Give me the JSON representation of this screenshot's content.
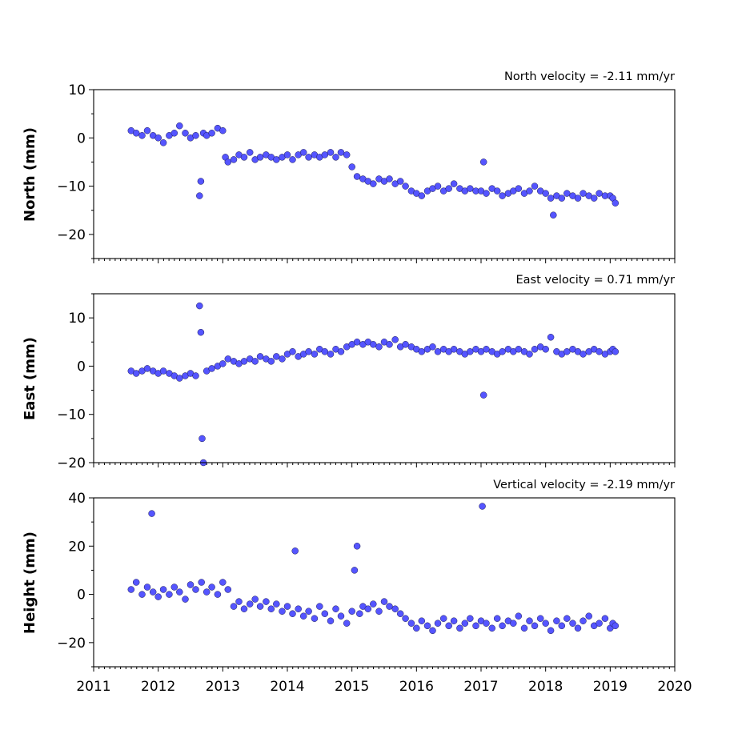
{
  "chart_data": [
    {
      "type": "scatter",
      "annotation": "North velocity = -2.11 mm/yr",
      "ylabel": "North (mm)",
      "xlim": [
        2011,
        2020
      ],
      "ylim": [
        -25,
        10
      ],
      "yticks": [
        10,
        0,
        -10,
        -20
      ],
      "ytick_labels": [
        "10",
        "0",
        "−10",
        "−20"
      ],
      "xticks": [
        2011,
        2012,
        2013,
        2014,
        2015,
        2016,
        2017,
        2018,
        2019,
        2020
      ],
      "xtick_labels": [],
      "color": "#5555ff",
      "x": [
        2011.58,
        2011.66,
        2011.75,
        2011.83,
        2011.92,
        2012.0,
        2012.08,
        2012.17,
        2012.25,
        2012.33,
        2012.42,
        2012.5,
        2012.58,
        2012.64,
        2012.66,
        2012.7,
        2012.75,
        2012.83,
        2012.92,
        2013.0,
        2013.04,
        2013.08,
        2013.17,
        2013.25,
        2013.33,
        2013.42,
        2013.5,
        2013.58,
        2013.67,
        2013.75,
        2013.83,
        2013.92,
        2014.0,
        2014.08,
        2014.17,
        2014.25,
        2014.33,
        2014.42,
        2014.5,
        2014.58,
        2014.67,
        2014.75,
        2014.83,
        2014.92,
        2015.0,
        2015.08,
        2015.17,
        2015.25,
        2015.33,
        2015.42,
        2015.5,
        2015.58,
        2015.67,
        2015.75,
        2015.83,
        2015.92,
        2016.0,
        2016.08,
        2016.17,
        2016.25,
        2016.33,
        2016.42,
        2016.5,
        2016.58,
        2016.67,
        2016.75,
        2016.83,
        2016.92,
        2017.0,
        2017.04,
        2017.08,
        2017.17,
        2017.25,
        2017.33,
        2017.42,
        2017.5,
        2017.58,
        2017.67,
        2017.75,
        2017.83,
        2017.92,
        2018.0,
        2018.08,
        2018.12,
        2018.17,
        2018.25,
        2018.33,
        2018.42,
        2018.5,
        2018.58,
        2018.67,
        2018.75,
        2018.83,
        2018.92,
        2019.0,
        2019.04,
        2019.08
      ],
      "y": [
        1.5,
        1.0,
        0.5,
        1.5,
        0.5,
        0.0,
        -1.0,
        0.5,
        1.0,
        2.5,
        1.0,
        0.0,
        0.5,
        -12.0,
        -9.0,
        1.0,
        0.5,
        1.0,
        2.0,
        1.5,
        -4.0,
        -5.0,
        -4.5,
        -3.5,
        -4.0,
        -3.0,
        -4.5,
        -4.0,
        -3.5,
        -4.0,
        -4.5,
        -4.0,
        -3.5,
        -4.5,
        -3.5,
        -3.0,
        -4.0,
        -3.5,
        -4.0,
        -3.5,
        -3.0,
        -4.0,
        -3.0,
        -3.5,
        -6.0,
        -8.0,
        -8.5,
        -9.0,
        -9.5,
        -8.5,
        -9.0,
        -8.5,
        -9.5,
        -9.0,
        -10.0,
        -11.0,
        -11.5,
        -12.0,
        -11.0,
        -10.5,
        -10.0,
        -11.0,
        -10.5,
        -9.5,
        -10.5,
        -11.0,
        -10.5,
        -11.0,
        -11.0,
        -5.0,
        -11.5,
        -10.5,
        -11.0,
        -12.0,
        -11.5,
        -11.0,
        -10.5,
        -11.5,
        -11.0,
        -10.0,
        -11.0,
        -11.5,
        -12.5,
        -16.0,
        -12.0,
        -12.5,
        -11.5,
        -12.0,
        -12.5,
        -11.5,
        -12.0,
        -12.5,
        -11.5,
        -12.0,
        -12.0,
        -12.5,
        -13.5
      ]
    },
    {
      "type": "scatter",
      "annotation": "East velocity = 0.71 mm/yr",
      "ylabel": "East (mm)",
      "xlim": [
        2011,
        2020
      ],
      "ylim": [
        -20,
        15
      ],
      "yticks": [
        10,
        0,
        -10,
        -20
      ],
      "ytick_labels": [
        "10",
        "0",
        "−10",
        "−20"
      ],
      "xticks": [
        2011,
        2012,
        2013,
        2014,
        2015,
        2016,
        2017,
        2018,
        2019,
        2020
      ],
      "xtick_labels": [],
      "color": "#5555ff",
      "x": [
        2011.58,
        2011.66,
        2011.75,
        2011.83,
        2011.92,
        2012.0,
        2012.08,
        2012.17,
        2012.25,
        2012.33,
        2012.42,
        2012.5,
        2012.58,
        2012.64,
        2012.66,
        2012.68,
        2012.7,
        2012.75,
        2012.83,
        2012.92,
        2013.0,
        2013.08,
        2013.17,
        2013.25,
        2013.33,
        2013.42,
        2013.5,
        2013.58,
        2013.67,
        2013.75,
        2013.83,
        2013.92,
        2014.0,
        2014.08,
        2014.17,
        2014.25,
        2014.33,
        2014.42,
        2014.5,
        2014.58,
        2014.67,
        2014.75,
        2014.83,
        2014.92,
        2015.0,
        2015.08,
        2015.17,
        2015.25,
        2015.33,
        2015.42,
        2015.5,
        2015.58,
        2015.67,
        2015.75,
        2015.83,
        2015.92,
        2016.0,
        2016.08,
        2016.17,
        2016.25,
        2016.33,
        2016.42,
        2016.5,
        2016.58,
        2016.67,
        2016.75,
        2016.83,
        2016.92,
        2017.0,
        2017.04,
        2017.08,
        2017.17,
        2017.25,
        2017.33,
        2017.42,
        2017.5,
        2017.58,
        2017.67,
        2017.75,
        2017.83,
        2017.92,
        2018.0,
        2018.08,
        2018.17,
        2018.25,
        2018.33,
        2018.42,
        2018.5,
        2018.58,
        2018.67,
        2018.75,
        2018.83,
        2018.92,
        2019.0,
        2019.04,
        2019.08
      ],
      "y": [
        -1.0,
        -1.5,
        -1.0,
        -0.5,
        -1.0,
        -1.5,
        -1.0,
        -1.5,
        -2.0,
        -2.5,
        -2.0,
        -1.5,
        -2.0,
        12.5,
        7.0,
        -15.0,
        -20.0,
        -1.0,
        -0.5,
        0.0,
        0.5,
        1.5,
        1.0,
        0.5,
        1.0,
        1.5,
        1.0,
        2.0,
        1.5,
        1.0,
        2.0,
        1.5,
        2.5,
        3.0,
        2.0,
        2.5,
        3.0,
        2.5,
        3.5,
        3.0,
        2.5,
        3.5,
        3.0,
        4.0,
        4.5,
        5.0,
        4.5,
        5.0,
        4.5,
        4.0,
        5.0,
        4.5,
        5.5,
        4.0,
        4.5,
        4.0,
        3.5,
        3.0,
        3.5,
        4.0,
        3.0,
        3.5,
        3.0,
        3.5,
        3.0,
        2.5,
        3.0,
        3.5,
        3.0,
        -6.0,
        3.5,
        3.0,
        2.5,
        3.0,
        3.5,
        3.0,
        3.5,
        3.0,
        2.5,
        3.5,
        4.0,
        3.5,
        6.0,
        3.0,
        2.5,
        3.0,
        3.5,
        3.0,
        2.5,
        3.0,
        3.5,
        3.0,
        2.5,
        3.0,
        3.5,
        3.0
      ]
    },
    {
      "type": "scatter",
      "annotation": "Vertical velocity = -2.19 mm/yr",
      "ylabel": "Height (mm)",
      "xlim": [
        2011,
        2020
      ],
      "ylim": [
        -30,
        40
      ],
      "yticks": [
        40,
        20,
        0,
        -20
      ],
      "ytick_labels": [
        "40",
        "20",
        "0",
        "−20"
      ],
      "xticks": [
        2011,
        2012,
        2013,
        2014,
        2015,
        2016,
        2017,
        2018,
        2019,
        2020
      ],
      "xtick_labels": [
        "2011",
        "2012",
        "2013",
        "2014",
        "2015",
        "2016",
        "2017",
        "2018",
        "2019",
        "2020"
      ],
      "color": "#5555ff",
      "x": [
        2011.58,
        2011.66,
        2011.75,
        2011.83,
        2011.9,
        2011.92,
        2012.0,
        2012.08,
        2012.17,
        2012.25,
        2012.33,
        2012.42,
        2012.5,
        2012.58,
        2012.67,
        2012.75,
        2012.83,
        2012.92,
        2013.0,
        2013.08,
        2013.17,
        2013.25,
        2013.33,
        2013.42,
        2013.5,
        2013.58,
        2013.67,
        2013.75,
        2013.83,
        2013.92,
        2014.0,
        2014.08,
        2014.12,
        2014.17,
        2014.25,
        2014.33,
        2014.42,
        2014.5,
        2014.58,
        2014.67,
        2014.75,
        2014.83,
        2014.92,
        2015.0,
        2015.04,
        2015.08,
        2015.12,
        2015.17,
        2015.25,
        2015.33,
        2015.42,
        2015.5,
        2015.58,
        2015.67,
        2015.75,
        2015.83,
        2015.92,
        2016.0,
        2016.08,
        2016.17,
        2016.25,
        2016.33,
        2016.42,
        2016.5,
        2016.58,
        2016.67,
        2016.75,
        2016.83,
        2016.92,
        2017.0,
        2017.02,
        2017.08,
        2017.17,
        2017.25,
        2017.33,
        2017.42,
        2017.5,
        2017.58,
        2017.67,
        2017.75,
        2017.83,
        2017.92,
        2018.0,
        2018.08,
        2018.17,
        2018.25,
        2018.33,
        2018.42,
        2018.5,
        2018.58,
        2018.67,
        2018.75,
        2018.83,
        2018.92,
        2019.0,
        2019.04,
        2019.08
      ],
      "y": [
        2.0,
        5.0,
        0.0,
        3.0,
        33.5,
        1.0,
        -1.0,
        2.0,
        0.0,
        3.0,
        1.0,
        -2.0,
        4.0,
        2.0,
        5.0,
        1.0,
        3.0,
        0.0,
        5.0,
        2.0,
        -5.0,
        -3.0,
        -6.0,
        -4.0,
        -2.0,
        -5.0,
        -3.0,
        -6.0,
        -4.0,
        -7.0,
        -5.0,
        -8.0,
        18.0,
        -6.0,
        -9.0,
        -7.0,
        -10.0,
        -5.0,
        -8.0,
        -11.0,
        -6.0,
        -9.0,
        -12.0,
        -7.0,
        10.0,
        20.0,
        -8.0,
        -5.0,
        -6.0,
        -4.0,
        -7.0,
        -3.0,
        -5.0,
        -6.0,
        -8.0,
        -10.0,
        -12.0,
        -14.0,
        -11.0,
        -13.0,
        -15.0,
        -12.0,
        -10.0,
        -13.0,
        -11.0,
        -14.0,
        -12.0,
        -10.0,
        -13.0,
        -11.0,
        36.5,
        -12.0,
        -14.0,
        -10.0,
        -13.0,
        -11.0,
        -12.0,
        -9.0,
        -14.0,
        -11.0,
        -13.0,
        -10.0,
        -12.0,
        -15.0,
        -11.0,
        -13.0,
        -10.0,
        -12.0,
        -14.0,
        -11.0,
        -9.0,
        -13.0,
        -12.0,
        -10.0,
        -14.0,
        -12.0,
        -13.0
      ]
    }
  ]
}
